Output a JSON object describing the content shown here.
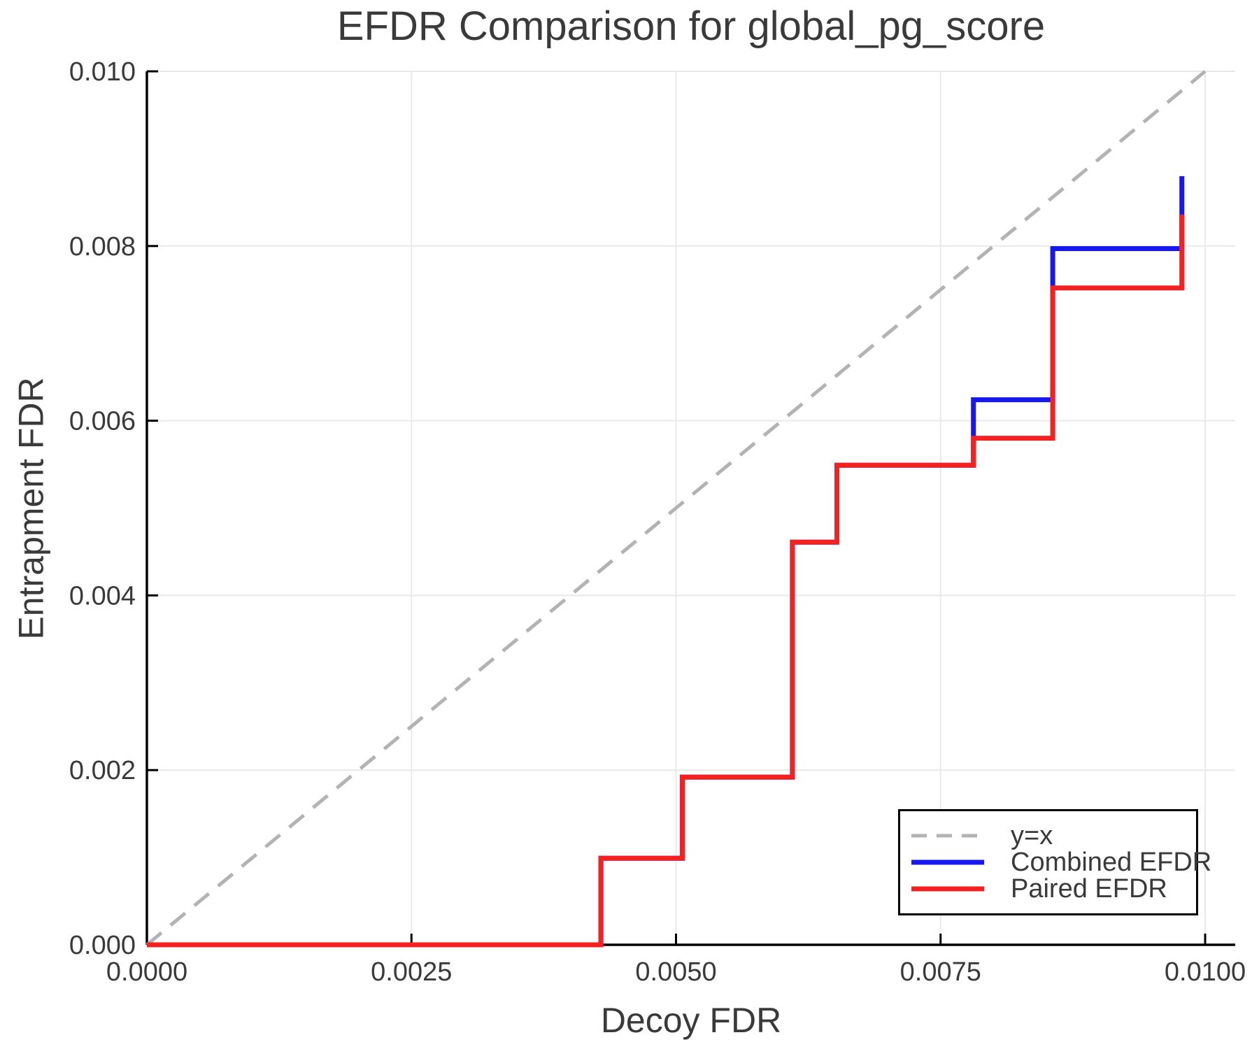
{
  "title": "EFDR Comparison for global_pg_score",
  "chart_data": {
    "type": "line",
    "title": "EFDR Comparison for global_pg_score",
    "xlabel": "Decoy FDR",
    "ylabel": "Entrapment FDR",
    "xlim": [
      0,
      0.01
    ],
    "ylim": [
      0,
      0.01
    ],
    "grid": true,
    "legend_position": "lower right",
    "x_ticks": [
      0,
      0.0025,
      0.005,
      0.0075,
      0.01
    ],
    "x_tick_labels": [
      "0.0000",
      "0.0025",
      "0.0050",
      "0.0075",
      "0.0100"
    ],
    "y_ticks": [
      0,
      0.002,
      0.004,
      0.006,
      0.008,
      0.01
    ],
    "y_tick_labels": [
      "0.000",
      "0.002",
      "0.004",
      "0.006",
      "0.008",
      "0.010"
    ],
    "reference_line": {
      "name": "y=x",
      "style": "dashed",
      "color": "#b3b3b3",
      "points": [
        [
          0,
          0
        ],
        [
          0.01,
          0.01
        ]
      ]
    },
    "series": [
      {
        "name": "Combined EFDR",
        "color": "#1717f0",
        "step": true,
        "points": [
          [
            0,
            0
          ],
          [
            0.00429,
            0
          ],
          [
            0.00429,
            0.00099
          ],
          [
            0.00506,
            0.00099
          ],
          [
            0.00506,
            0.00192
          ],
          [
            0.0061,
            0.00192
          ],
          [
            0.0061,
            0.00461
          ],
          [
            0.00652,
            0.00461
          ],
          [
            0.00652,
            0.00549
          ],
          [
            0.00781,
            0.00549
          ],
          [
            0.00781,
            0.00624
          ],
          [
            0.00856,
            0.00624
          ],
          [
            0.00856,
            0.00797
          ],
          [
            0.00978,
            0.00797
          ],
          [
            0.00978,
            0.0088
          ]
        ]
      },
      {
        "name": "Paired EFDR",
        "color": "#f52020",
        "step": true,
        "points": [
          [
            0,
            0
          ],
          [
            0.00429,
            0
          ],
          [
            0.00429,
            0.00099
          ],
          [
            0.00506,
            0.00099
          ],
          [
            0.00506,
            0.00192
          ],
          [
            0.0061,
            0.00192
          ],
          [
            0.0061,
            0.00461
          ],
          [
            0.00652,
            0.00461
          ],
          [
            0.00652,
            0.00549
          ],
          [
            0.00781,
            0.00549
          ],
          [
            0.00781,
            0.0058
          ],
          [
            0.00856,
            0.0058
          ],
          [
            0.00856,
            0.00752
          ],
          [
            0.00978,
            0.00752
          ],
          [
            0.00978,
            0.00836
          ]
        ]
      }
    ],
    "colors": {
      "grid": "#e9e9e9",
      "spine": "#000000",
      "text": "#3a3a3a",
      "reference": "#b3b3b3",
      "combined": "#1717f0",
      "paired": "#f52020"
    }
  },
  "legend": {
    "items": [
      {
        "label": "y=x",
        "color": "#b3b3b3",
        "style": "dashed"
      },
      {
        "label": "Combined EFDR",
        "color": "#1717f0",
        "style": "solid"
      },
      {
        "label": "Paired EFDR",
        "color": "#f52020",
        "style": "solid"
      }
    ]
  }
}
